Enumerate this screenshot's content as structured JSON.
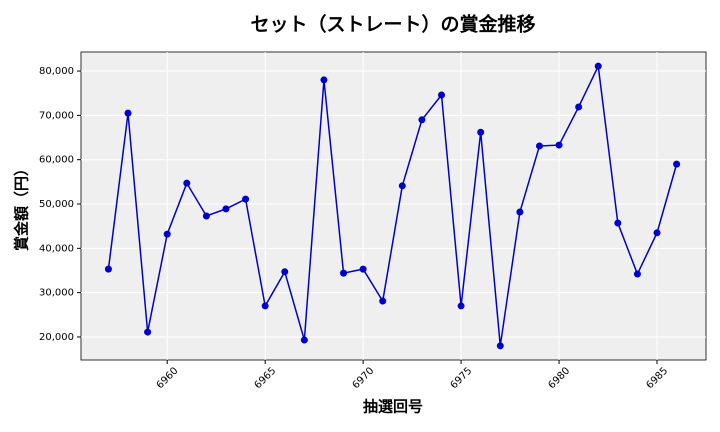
{
  "chart_data": {
    "type": "line",
    "title": "セット（ストレート）の賞金推移",
    "x_label": "抽選回号",
    "y_label": "賞金額（円）",
    "x": [
      6957,
      6958,
      6959,
      6960,
      6961,
      6962,
      6963,
      6964,
      6965,
      6966,
      6967,
      6968,
      6969,
      6970,
      6971,
      6972,
      6973,
      6974,
      6975,
      6976,
      6977,
      6978,
      6979,
      6980,
      6981,
      6982,
      6983,
      6984,
      6985,
      6986
    ],
    "series": [
      {
        "name": "賞金",
        "color": "#0000cc",
        "values": [
          35300,
          70500,
          21100,
          43200,
          54700,
          47300,
          48900,
          51100,
          27000,
          34700,
          19300,
          78000,
          34400,
          35300,
          28100,
          54100,
          69000,
          74600,
          27000,
          66200,
          18000,
          48200,
          63100,
          63300,
          71900,
          81100,
          45700,
          34200,
          43500,
          59000
        ]
      }
    ],
    "xlim": [
      6955.6,
      6987.5
    ],
    "ylim": [
      14800,
      84300
    ],
    "xticks": [
      6960,
      6965,
      6970,
      6975,
      6980,
      6985
    ],
    "yticks": [
      {
        "value": 20000,
        "label": "20,000"
      },
      {
        "value": 30000,
        "label": "30,000"
      },
      {
        "value": 40000,
        "label": "40,000"
      },
      {
        "value": 50000,
        "label": "50,000"
      },
      {
        "value": 60000,
        "label": "60,000"
      },
      {
        "value": 70000,
        "label": "70,000"
      },
      {
        "value": 80000,
        "label": "80,000"
      }
    ],
    "grid": true
  }
}
